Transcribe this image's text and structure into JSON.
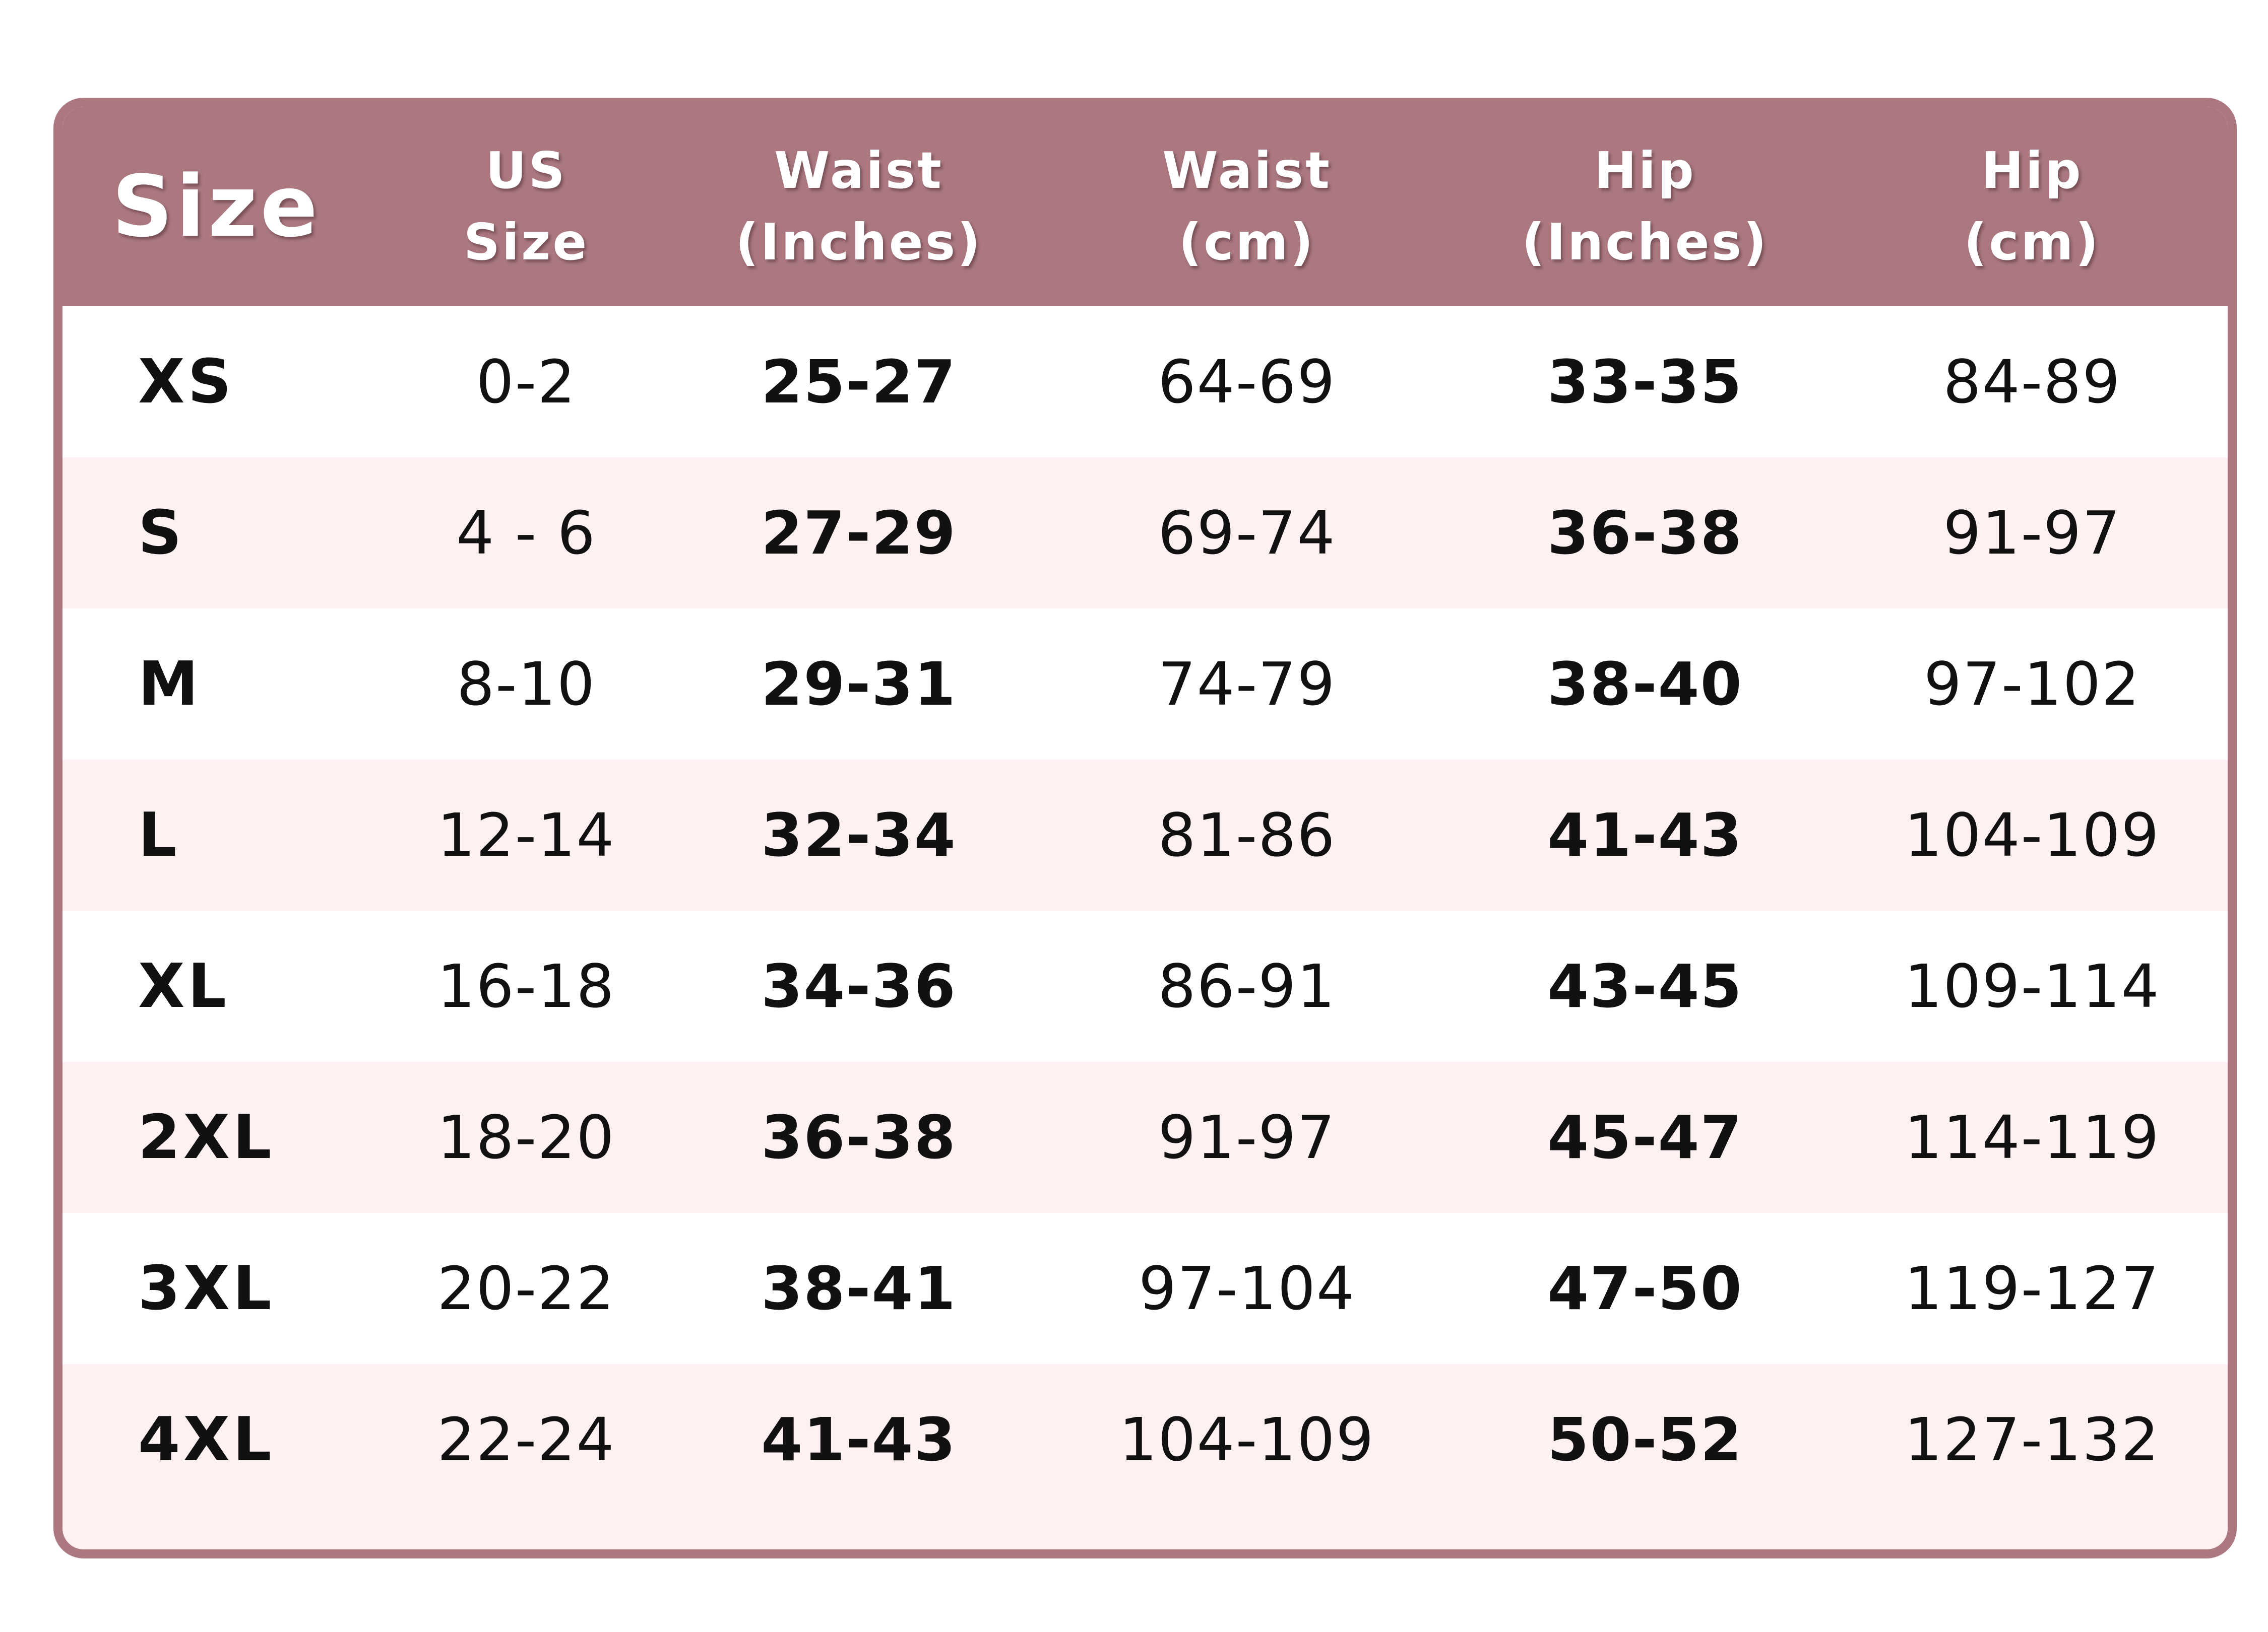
{
  "colors": {
    "header_background": "#ab7880",
    "border": "#ab7880",
    "alternate_row": "#fff0f2",
    "row": "#ffffff",
    "header_text": "#ffffff",
    "body_text": "#111111"
  },
  "header": {
    "size": "Size",
    "us_size": [
      "US",
      "Size"
    ],
    "waist_inches": [
      "Waist",
      "(Inches)"
    ],
    "waist_cm": [
      "Waist",
      "(cm)"
    ],
    "hip_inches": [
      "Hip",
      "(Inches)"
    ],
    "hip_cm": [
      "Hip",
      "(cm)"
    ]
  },
  "rows": [
    {
      "size": "XS",
      "us_size": "0-2",
      "waist_in": "25-27",
      "waist_cm": "64-69",
      "hip_in": "33-35",
      "hip_cm": "84-89"
    },
    {
      "size": "S",
      "us_size": "4 - 6",
      "waist_in": "27-29",
      "waist_cm": "69-74",
      "hip_in": "36-38",
      "hip_cm": "91-97"
    },
    {
      "size": "M",
      "us_size": "8-10",
      "waist_in": "29-31",
      "waist_cm": "74-79",
      "hip_in": "38-40",
      "hip_cm": "97-102"
    },
    {
      "size": "L",
      "us_size": "12-14",
      "waist_in": "32-34",
      "waist_cm": "81-86",
      "hip_in": "41-43",
      "hip_cm": "104-109"
    },
    {
      "size": "XL",
      "us_size": "16-18",
      "waist_in": "34-36",
      "waist_cm": "86-91",
      "hip_in": "43-45",
      "hip_cm": "109-114"
    },
    {
      "size": "2XL",
      "us_size": "18-20",
      "waist_in": "36-38",
      "waist_cm": "91-97",
      "hip_in": "45-47",
      "hip_cm": "114-119"
    },
    {
      "size": "3XL",
      "us_size": "20-22",
      "waist_in": "38-41",
      "waist_cm": "97-104",
      "hip_in": "47-50",
      "hip_cm": "119-127"
    },
    {
      "size": "4XL",
      "us_size": "22-24",
      "waist_in": "41-43",
      "waist_cm": "104-109",
      "hip_in": "50-52",
      "hip_cm": "127-132"
    }
  ]
}
